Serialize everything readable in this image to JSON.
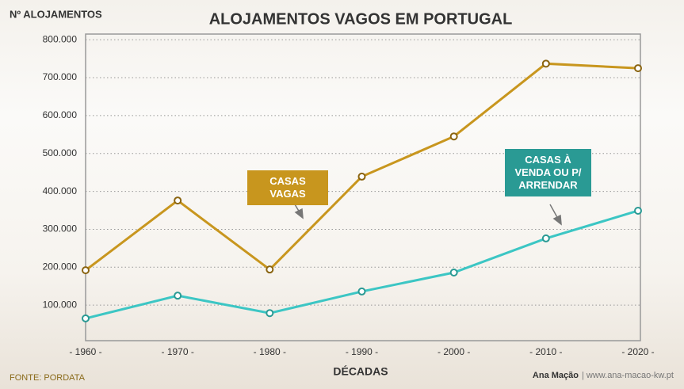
{
  "chart_data": {
    "type": "line",
    "title": "ALOJAMENTOS VAGOS EM PORTUGAL",
    "y_label": "Nº ALOJAMENTOS",
    "x_label": "DÉCADAS",
    "source": "FONTE: PORDATA",
    "credit_name": "Ana Mação",
    "credit_site": "| www.ana-macao-kw.pt",
    "categories": [
      "- 1960 -",
      "- 1970 -",
      "- 1980 -",
      "- 1990 -",
      "- 2000 -",
      "- 2010 -",
      "- 2020 -"
    ],
    "series": [
      {
        "name": "CASAS VAGAS",
        "color": "#c8961e",
        "values": [
          192000,
          376000,
          194000,
          439000,
          545000,
          737000,
          725000
        ]
      },
      {
        "name": "CASAS À VENDA OU P/ ARRENDAR",
        "color": "#3cc6c4",
        "values": [
          65000,
          125000,
          79000,
          136000,
          186000,
          276000,
          349000
        ]
      }
    ],
    "ylim": [
      0,
      815000
    ],
    "yticks": [
      {
        "value": 100000,
        "label": "100.000"
      },
      {
        "value": 200000,
        "label": "200.000"
      },
      {
        "value": 300000,
        "label": "300.000"
      },
      {
        "value": 400000,
        "label": "400.000"
      },
      {
        "value": 500000,
        "label": "500.000"
      },
      {
        "value": 600000,
        "label": "600.000"
      },
      {
        "value": 700000,
        "label": "700.000"
      },
      {
        "value": 800000,
        "label": "800.000"
      }
    ],
    "grid": true
  }
}
